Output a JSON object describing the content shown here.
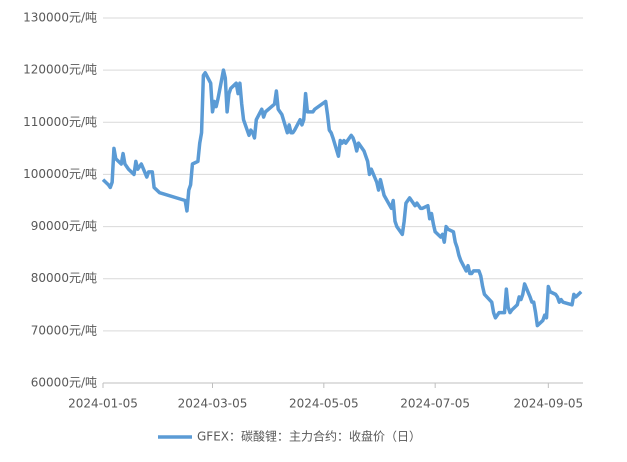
{
  "chart_data": {
    "type": "line",
    "x": [
      "2024-01-05",
      "2024-01-08",
      "2024-01-09",
      "2024-01-10",
      "2024-01-11",
      "2024-01-12",
      "2024-01-15",
      "2024-01-16",
      "2024-01-17",
      "2024-01-18",
      "2024-01-19",
      "2024-01-22",
      "2024-01-23",
      "2024-01-24",
      "2024-01-25",
      "2024-01-26",
      "2024-01-29",
      "2024-01-30",
      "2024-02-01",
      "2024-02-02",
      "2024-02-05",
      "2024-02-19",
      "2024-02-20",
      "2024-02-21",
      "2024-02-22",
      "2024-02-23",
      "2024-02-26",
      "2024-02-27",
      "2024-02-28",
      "2024-02-29",
      "2024-03-01",
      "2024-03-04",
      "2024-03-05",
      "2024-03-06",
      "2024-03-07",
      "2024-03-08",
      "2024-03-11",
      "2024-03-12",
      "2024-03-13",
      "2024-03-14",
      "2024-03-15",
      "2024-03-18",
      "2024-03-19",
      "2024-03-20",
      "2024-03-21",
      "2024-03-22",
      "2024-03-25",
      "2024-03-26",
      "2024-03-27",
      "2024-03-28",
      "2024-03-29",
      "2024-04-01",
      "2024-04-02",
      "2024-04-03",
      "2024-04-08",
      "2024-04-09",
      "2024-04-10",
      "2024-04-11",
      "2024-04-12",
      "2024-04-15",
      "2024-04-16",
      "2024-04-17",
      "2024-04-18",
      "2024-04-19",
      "2024-04-22",
      "2024-04-23",
      "2024-04-24",
      "2024-04-25",
      "2024-04-26",
      "2024-04-29",
      "2024-04-30",
      "2024-05-06",
      "2024-05-07",
      "2024-05-08",
      "2024-05-09",
      "2024-05-10",
      "2024-05-13",
      "2024-05-14",
      "2024-05-15",
      "2024-05-16",
      "2024-05-17",
      "2024-05-20",
      "2024-05-21",
      "2024-05-22",
      "2024-05-23",
      "2024-05-24",
      "2024-05-27",
      "2024-05-28",
      "2024-05-29",
      "2024-05-30",
      "2024-05-31",
      "2024-06-03",
      "2024-06-04",
      "2024-06-05",
      "2024-06-06",
      "2024-06-07",
      "2024-06-11",
      "2024-06-12",
      "2024-06-13",
      "2024-06-14",
      "2024-06-17",
      "2024-06-18",
      "2024-06-19",
      "2024-06-20",
      "2024-06-21",
      "2024-06-24",
      "2024-06-25",
      "2024-06-26",
      "2024-06-27",
      "2024-06-28",
      "2024-07-01",
      "2024-07-02",
      "2024-07-03",
      "2024-07-04",
      "2024-07-05",
      "2024-07-08",
      "2024-07-09",
      "2024-07-10",
      "2024-07-11",
      "2024-07-12",
      "2024-07-15",
      "2024-07-16",
      "2024-07-17",
      "2024-07-18",
      "2024-07-19",
      "2024-07-22",
      "2024-07-23",
      "2024-07-24",
      "2024-07-25",
      "2024-07-26",
      "2024-07-29",
      "2024-07-30",
      "2024-07-31",
      "2024-08-01",
      "2024-08-05",
      "2024-08-06",
      "2024-08-07",
      "2024-08-08",
      "2024-08-09",
      "2024-08-12",
      "2024-08-13",
      "2024-08-14",
      "2024-08-15",
      "2024-08-16",
      "2024-08-19",
      "2024-08-20",
      "2024-08-21",
      "2024-08-22",
      "2024-08-23",
      "2024-08-26",
      "2024-08-27",
      "2024-08-28",
      "2024-08-29",
      "2024-08-30",
      "2024-09-02",
      "2024-09-03",
      "2024-09-04",
      "2024-09-05",
      "2024-09-06",
      "2024-09-09",
      "2024-09-10",
      "2024-09-11",
      "2024-09-12",
      "2024-09-13",
      "2024-09-18",
      "2024-09-19",
      "2024-09-20",
      "2024-09-23"
    ],
    "series": [
      {
        "name": "GFEX：碳酸锂：主力合约：收盘价（日）",
        "color": "#5b9bd5",
        "values": [
          99000,
          98000,
          97500,
          98500,
          105000,
          103000,
          102000,
          104000,
          102000,
          101500,
          101000,
          100000,
          102500,
          101000,
          101500,
          102000,
          99500,
          100500,
          100500,
          97500,
          96500,
          95000,
          93000,
          97000,
          98000,
          102000,
          102500,
          106000,
          108000,
          119000,
          119500,
          117500,
          112000,
          114000,
          113000,
          114500,
          120000,
          118500,
          112000,
          115500,
          116500,
          117500,
          115500,
          117500,
          113500,
          110500,
          107500,
          108500,
          108000,
          107000,
          110500,
          112500,
          111000,
          112000,
          113500,
          116000,
          112500,
          112000,
          111500,
          108000,
          109500,
          108000,
          108000,
          108500,
          110500,
          109500,
          110500,
          115500,
          112000,
          112000,
          112500,
          114000,
          111500,
          108500,
          108000,
          107000,
          103500,
          106500,
          106000,
          106500,
          106000,
          107500,
          107000,
          106000,
          104500,
          106000,
          104500,
          103500,
          102500,
          100000,
          101000,
          98500,
          97000,
          99000,
          97500,
          96000,
          93500,
          95000,
          91000,
          90000,
          88500,
          91000,
          94500,
          95000,
          95500,
          94000,
          94500,
          94000,
          93500,
          93500,
          94000,
          91500,
          92500,
          90500,
          89000,
          88000,
          88500,
          87000,
          90000,
          89500,
          89000,
          87000,
          86000,
          84500,
          83500,
          81500,
          82500,
          81000,
          81000,
          81500,
          81500,
          80500,
          78500,
          77000,
          75500,
          73500,
          72500,
          73000,
          73500,
          73500,
          78000,
          74500,
          73500,
          74000,
          75000,
          76500,
          76000,
          77000,
          79000,
          76500,
          75500,
          75500,
          73500,
          71000,
          72000,
          73000,
          72500,
          78500,
          77500,
          77000,
          76500,
          75500,
          76000,
          75500,
          75000,
          77000,
          76500,
          77500
        ]
      }
    ],
    "xlim": [
      "2024-01-05",
      "2024-09-24"
    ],
    "xticks": [
      "2024-01-05",
      "2024-03-05",
      "2024-05-05",
      "2024-07-05",
      "2024-09-05"
    ],
    "ylim": [
      60000,
      130000
    ],
    "yticks": [
      {
        "value": 60000,
        "label": "60000元/吨"
      },
      {
        "value": 70000,
        "label": "70000元/吨"
      },
      {
        "value": 80000,
        "label": "80000元/吨"
      },
      {
        "value": 90000,
        "label": "90000元/吨"
      },
      {
        "value": 100000,
        "label": "100000元/吨"
      },
      {
        "value": 110000,
        "label": "110000元/吨"
      },
      {
        "value": 120000,
        "label": "120000元/吨"
      },
      {
        "value": 130000,
        "label": "130000元/吨"
      }
    ],
    "grid": true,
    "legend": "bottom"
  }
}
